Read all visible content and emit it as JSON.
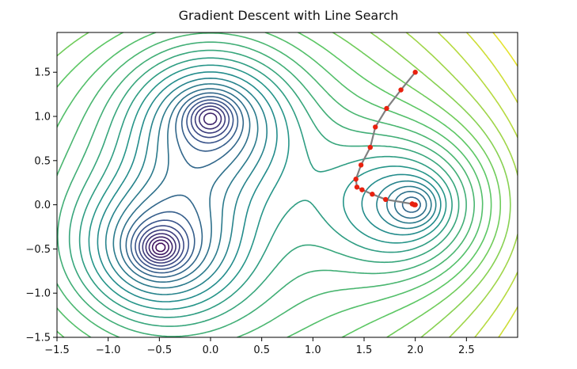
{
  "chart_data": {
    "type": "line",
    "title": "Gradient Descent with Line Search",
    "xlabel": "",
    "ylabel": "",
    "xlim": [
      -1.5,
      3.0
    ],
    "ylim": [
      -1.5,
      1.95
    ],
    "xticks": [
      -1.5,
      -1.0,
      -0.5,
      0.0,
      0.5,
      1.0,
      1.5,
      2.0,
      2.5
    ],
    "yticks": [
      -1.5,
      -1.0,
      -0.5,
      0.0,
      0.5,
      1.0,
      1.5
    ],
    "xtick_labels": [
      "−1.5",
      "−1.0",
      "−0.5",
      "0.0",
      "0.5",
      "1.0",
      "1.5",
      "2.0",
      "2.5"
    ],
    "ytick_labels": [
      "−1.5",
      "−1.0",
      "−0.5",
      "0.0",
      "0.5",
      "1.0",
      "1.5"
    ],
    "grid": false,
    "contour_minima": [
      {
        "x": 0.0,
        "y": 1.0
      },
      {
        "x": -0.5,
        "y": -0.5
      },
      {
        "x": 2.0,
        "y": 0.0
      }
    ],
    "colormap": [
      "#440154",
      "#3b528b",
      "#21918c",
      "#5ec962",
      "#fde725"
    ],
    "path_color": "#808080",
    "marker_color": "#e8210f",
    "series": [
      {
        "x": [
          2.0,
          1.86,
          1.72,
          1.61,
          1.56,
          1.47,
          1.42,
          1.43,
          1.48,
          1.58,
          1.71,
          1.97,
          1.99,
          2.0
        ],
        "y": [
          1.5,
          1.3,
          1.09,
          0.88,
          0.65,
          0.45,
          0.29,
          0.2,
          0.17,
          0.12,
          0.06,
          0.01,
          0.0,
          0.0
        ]
      }
    ]
  }
}
